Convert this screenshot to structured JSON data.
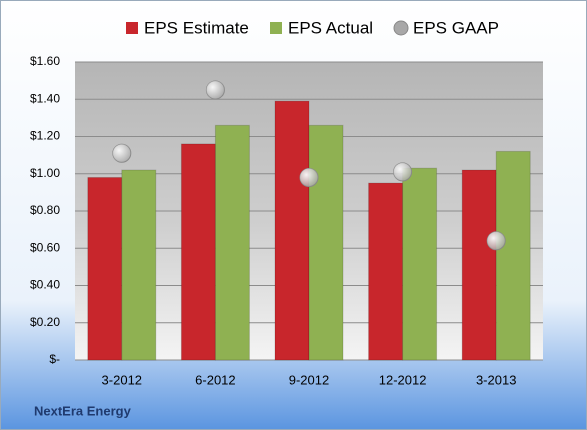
{
  "chart_data": {
    "type": "bar",
    "categories": [
      "3-2012",
      "6-2012",
      "9-2012",
      "12-2012",
      "3-2013"
    ],
    "series": [
      {
        "name": "EPS Estimate",
        "color": "#c8262c",
        "values": [
          0.98,
          1.16,
          1.39,
          0.95,
          1.02
        ]
      },
      {
        "name": "EPS Actual",
        "color": "#8fb152",
        "values": [
          1.02,
          1.26,
          1.26,
          1.03,
          1.12
        ]
      },
      {
        "name": "EPS GAAP",
        "color": "#a8a8a8",
        "type": "scatter",
        "values": [
          1.11,
          1.45,
          0.98,
          1.01,
          0.64
        ]
      }
    ],
    "ylim": [
      0,
      1.6
    ],
    "yticks": [
      {
        "value": 0,
        "label": "$-"
      },
      {
        "value": 0.2,
        "label": "$0.20"
      },
      {
        "value": 0.4,
        "label": "$0.40"
      },
      {
        "value": 0.6,
        "label": "$0.60"
      },
      {
        "value": 0.8,
        "label": "$0.80"
      },
      {
        "value": 1.0,
        "label": "$1.00"
      },
      {
        "value": 1.2,
        "label": "$1.20"
      },
      {
        "value": 1.4,
        "label": "$1.40"
      },
      {
        "value": 1.6,
        "label": "$1.60"
      }
    ],
    "grid": true,
    "legend": "top",
    "footer": "NextEra Energy"
  }
}
